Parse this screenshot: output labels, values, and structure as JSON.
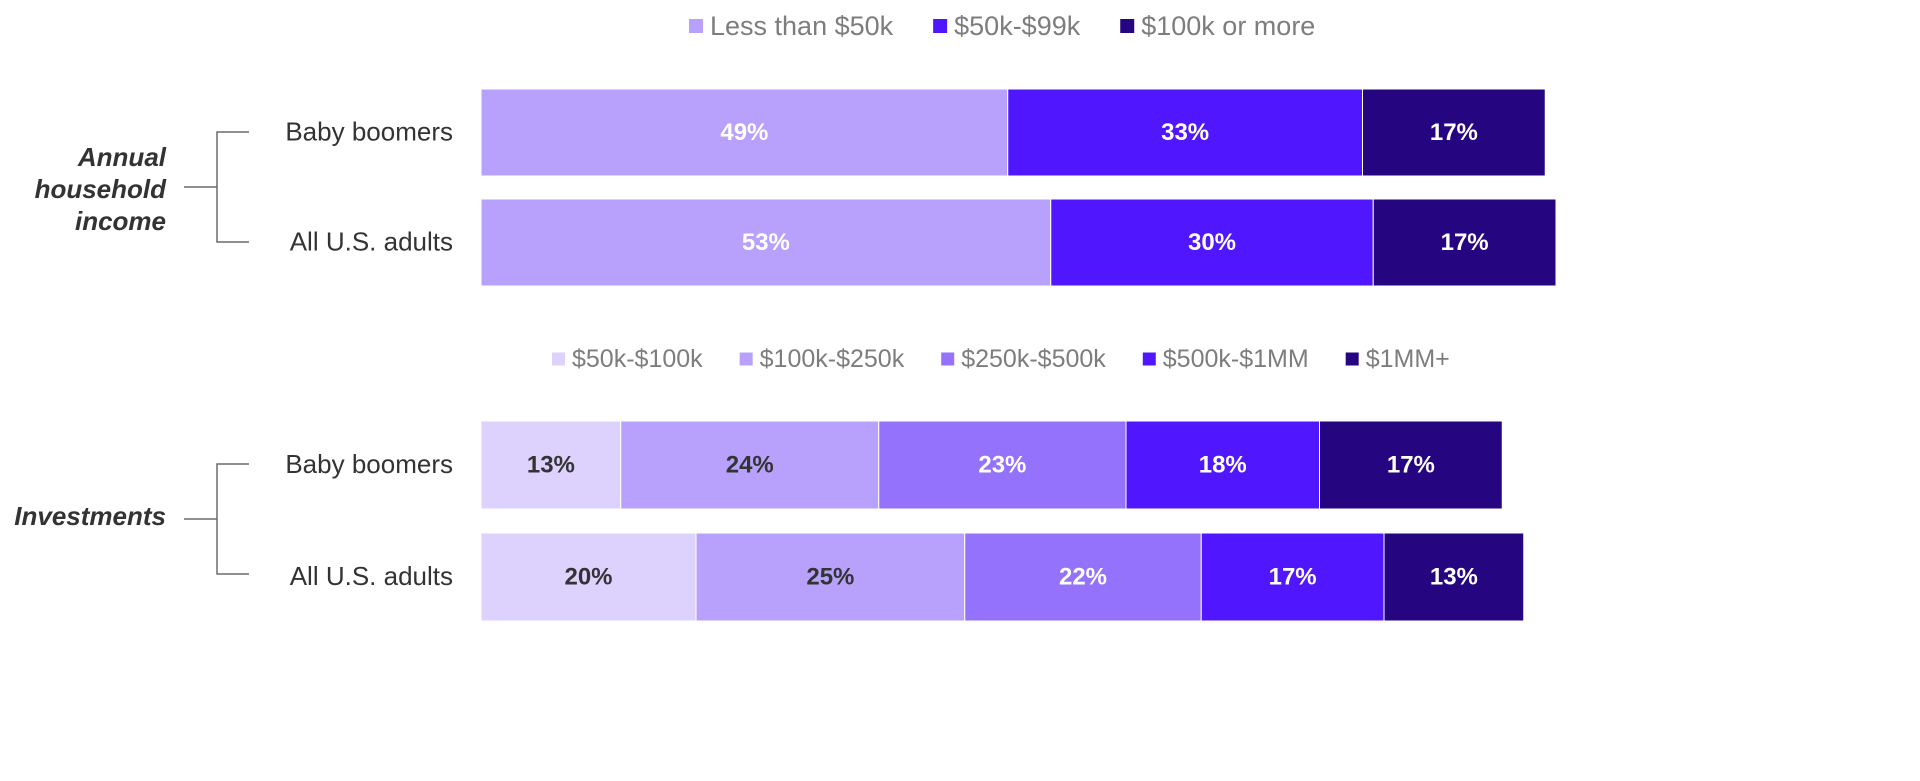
{
  "chart_data": [
    {
      "type": "bar",
      "orientation": "horizontal",
      "stacked": true,
      "group_label": [
        "Annual",
        "household",
        "income"
      ],
      "categories": [
        "Baby boomers",
        "All U.S. adults"
      ],
      "legend_position": "top",
      "series": [
        {
          "name": "Less than $50k",
          "color": "#b8a1fc",
          "values": [
            49,
            53
          ],
          "labels": [
            "49%",
            "53%"
          ],
          "label_color": "#ffffff"
        },
        {
          "name": "$50k-$99k",
          "color": "#5017ff",
          "values": [
            33,
            30
          ],
          "labels": [
            "33%",
            "30%"
          ],
          "label_color": "#ffffff"
        },
        {
          "name": "$100k or more",
          "color": "#250580",
          "values": [
            17,
            17
          ],
          "labels": [
            "17%",
            "17%"
          ],
          "label_color": "#ffffff"
        }
      ]
    },
    {
      "type": "bar",
      "orientation": "horizontal",
      "stacked": true,
      "group_label": [
        "Investments"
      ],
      "categories": [
        "Baby boomers",
        "All U.S. adults"
      ],
      "legend_position": "top",
      "series": [
        {
          "name": "$50k-$100k",
          "color": "#dcd2fd",
          "values": [
            13,
            20
          ],
          "labels": [
            "13%",
            "20%"
          ],
          "label_color": "#333333"
        },
        {
          "name": "$100k-$250k",
          "color": "#b8a1fc",
          "values": [
            24,
            25
          ],
          "labels": [
            "24%",
            "25%"
          ],
          "label_color": "#333333"
        },
        {
          "name": "$250k-$500k",
          "color": "#9572fb",
          "values": [
            23,
            22
          ],
          "labels": [
            "23%",
            "22%"
          ],
          "label_color": "#ffffff"
        },
        {
          "name": "$500k-$1MM",
          "color": "#5017ff",
          "values": [
            18,
            17
          ],
          "labels": [
            "18%",
            "17%"
          ],
          "label_color": "#ffffff"
        },
        {
          "name": "$1MM+",
          "color": "#250580",
          "values": [
            17,
            13
          ],
          "labels": [
            "17%",
            "13%"
          ],
          "label_color": "#ffffff"
        }
      ]
    }
  ]
}
